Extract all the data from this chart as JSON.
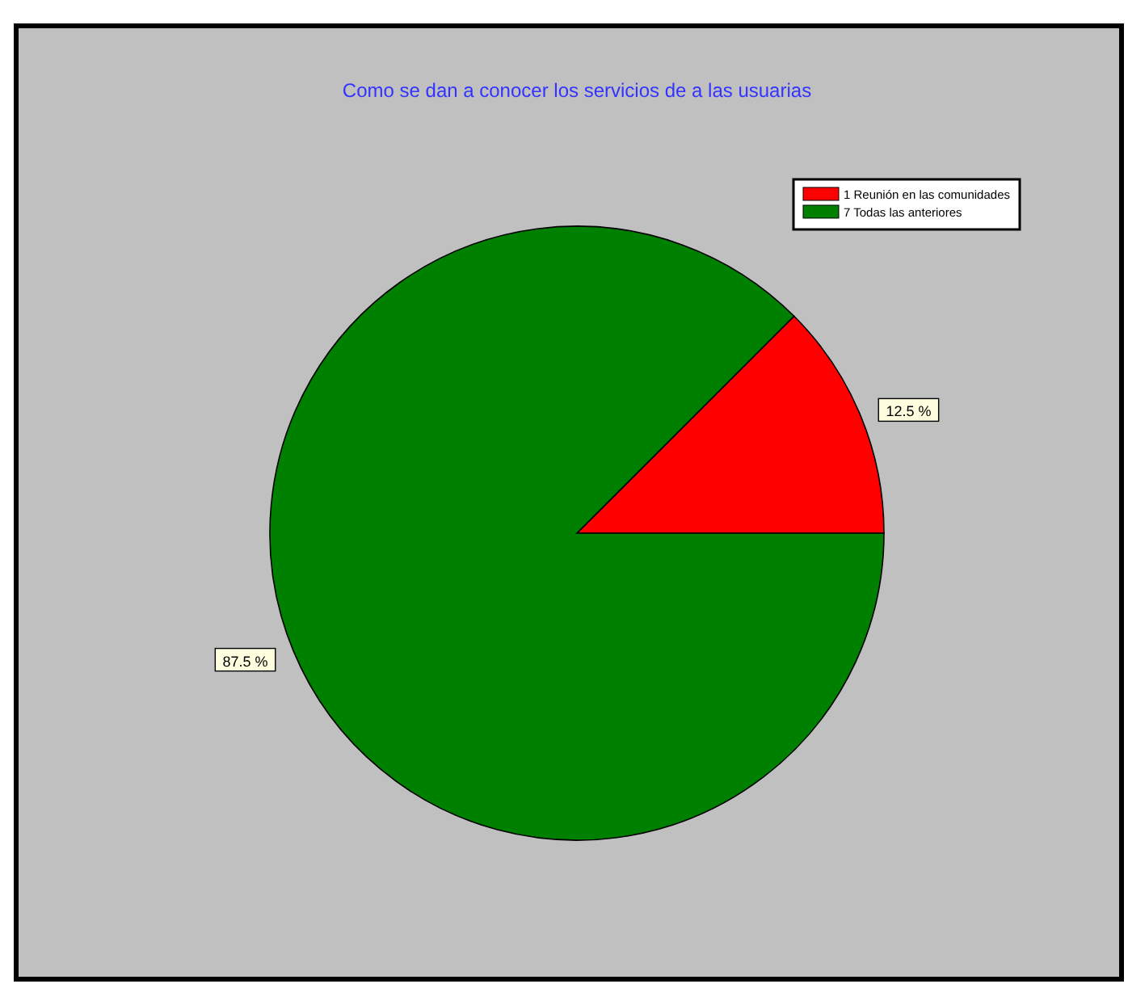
{
  "chart_data": {
    "type": "pie",
    "title": "Como se dan a conocer los servicios de a las usuarias",
    "categories": [
      "1 Reunión en las comunidades",
      "7 Todas las anteriores"
    ],
    "values": [
      12.5,
      87.5
    ],
    "colors": [
      "#ff0000",
      "#008000"
    ],
    "value_labels": [
      "12.5 %",
      "87.5 %"
    ],
    "legend": "top right"
  }
}
